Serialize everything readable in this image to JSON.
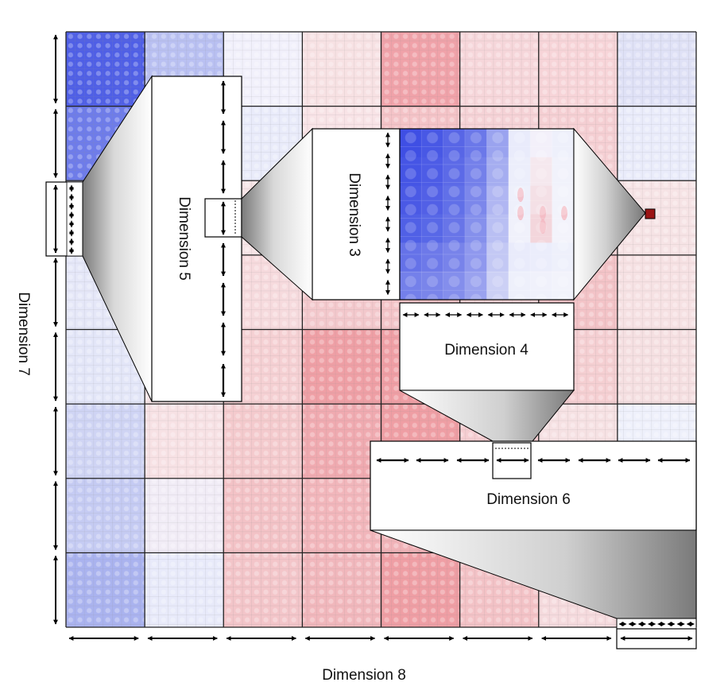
{
  "labels": {
    "dim3": "Dimension 3",
    "dim4": "Dimension 4",
    "dim5": "Dimension 5",
    "dim6": "Dimension 6",
    "dim7": "Dimension 7",
    "dim8": "Dimension 8"
  },
  "grid": {
    "blocks": 8,
    "block_colors": [
      [
        "#4f5fe6",
        "#b9c0f2",
        "#f1f0fb",
        "#f7e1e3",
        "#f0a2a9",
        "#f6d6da",
        "#f7d4d8",
        "#dfe1f6"
      ],
      [
        "#6e7cea",
        "#cdd2f4",
        "#e9ebfa",
        "#f8e3e6",
        "#f4c3c7",
        "#f5d2d6",
        "#f5cfd3",
        "#e9ebfa"
      ],
      [
        "#dde0f7",
        "#f8edef",
        "#f6e4e6",
        "#f5dde0",
        "#f3cbcf",
        "#f7dde0",
        "#f5d5d8",
        "#f6e3e5"
      ],
      [
        "#e5e7f8",
        "#f8e8ea",
        "#f6dadd",
        "#f3c8cc",
        "#f3c3c7",
        "#f6d3d6",
        "#f3c3c7",
        "#f6e1e3"
      ],
      [
        "#e3e6f8",
        "#f7e4e6",
        "#f5d0d3",
        "#ef9fa5",
        "#ef9ea4",
        "#f3c5c9",
        "#f5cfd2",
        "#f5dfe1"
      ],
      [
        "#cfd4f4",
        "#f7e1e4",
        "#f4cacd",
        "#f0aab0",
        "#ef9ea4",
        "#f5cdd1",
        "#f6e1e3",
        "#eef0fb"
      ],
      [
        "#c5cbf3",
        "#f1ecf6",
        "#f3c2c6",
        "#f2b6bb",
        "#f1b3b8",
        "#f5d1d4",
        "#f3ccd0",
        "#f6e7ea"
      ],
      [
        "#aab3ef",
        "#e8eafa",
        "#f3c5c9",
        "#f1b7bc",
        "#ef9ea4",
        "#f3c2c6",
        "#f5dadd",
        "#e2e5f8"
      ]
    ],
    "zoom_colors": [
      [
        "#3f4fe4",
        "#4858e5",
        "#5866e6",
        "#6b78e9",
        "#9aa3ef",
        "#e9ebfb",
        "#f3f0fa",
        "#eef0fb"
      ],
      [
        "#4555e5",
        "#4d5ce6",
        "#5c6ae7",
        "#7480ea",
        "#a5adf0",
        "#eceefb",
        "#f5e8ee",
        "#f1f2fb"
      ],
      [
        "#4a59e5",
        "#5260e6",
        "#6170e8",
        "#7c87eb",
        "#b0b6f2",
        "#eef0fb",
        "#f4e0e6",
        "#f2f3fb"
      ],
      [
        "#5060e6",
        "#5868e7",
        "#6875e8",
        "#8590ec",
        "#b9bff3",
        "#f0f1fb",
        "#f3d6dc",
        "#f3f3fb"
      ],
      [
        "#6572e8",
        "#6d79e9",
        "#7883ea",
        "#8f98ee",
        "#c3c8f4",
        "#e9ebfb",
        "#ebedfb",
        "#eef0fb"
      ],
      [
        "#7480ea",
        "#7a85ea",
        "#848eec",
        "#9aa2ef",
        "#ccd0f5",
        "#eef0fb",
        "#f0f1fb",
        "#f2f3fb"
      ]
    ]
  }
}
